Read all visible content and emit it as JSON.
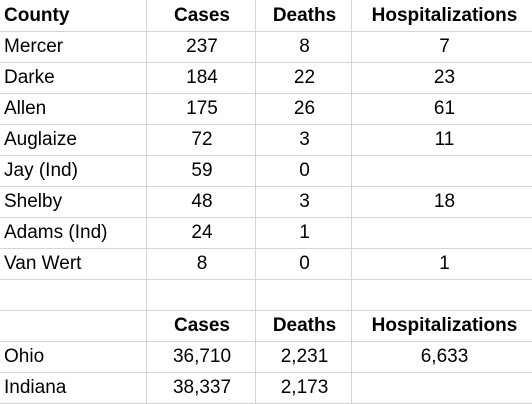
{
  "county_table": {
    "headers": {
      "county": "County",
      "cases": "Cases",
      "deaths": "Deaths",
      "hospitalizations": "Hospitalizations"
    },
    "rows": [
      {
        "county": "Mercer",
        "cases": "237",
        "deaths": "8",
        "hospitalizations": "7"
      },
      {
        "county": "Darke",
        "cases": "184",
        "deaths": "22",
        "hospitalizations": "23"
      },
      {
        "county": "Allen",
        "cases": "175",
        "deaths": "26",
        "hospitalizations": "61"
      },
      {
        "county": "Auglaize",
        "cases": "72",
        "deaths": "3",
        "hospitalizations": "11"
      },
      {
        "county": "Jay (Ind)",
        "cases": "59",
        "deaths": "0",
        "hospitalizations": ""
      },
      {
        "county": "Shelby",
        "cases": "48",
        "deaths": "3",
        "hospitalizations": "18"
      },
      {
        "county": "Adams (Ind)",
        "cases": "24",
        "deaths": "1",
        "hospitalizations": ""
      },
      {
        "county": "Van Wert",
        "cases": "8",
        "deaths": "0",
        "hospitalizations": "1"
      }
    ]
  },
  "state_table": {
    "headers": {
      "cases": "Cases",
      "deaths": "Deaths",
      "hospitalizations": "Hospitalizations"
    },
    "rows": [
      {
        "state": "Ohio",
        "cases": "36,710",
        "deaths": "2,231",
        "hospitalizations": "6,633"
      },
      {
        "state": "Indiana",
        "cases": "38,337",
        "deaths": "2,173",
        "hospitalizations": ""
      }
    ]
  }
}
